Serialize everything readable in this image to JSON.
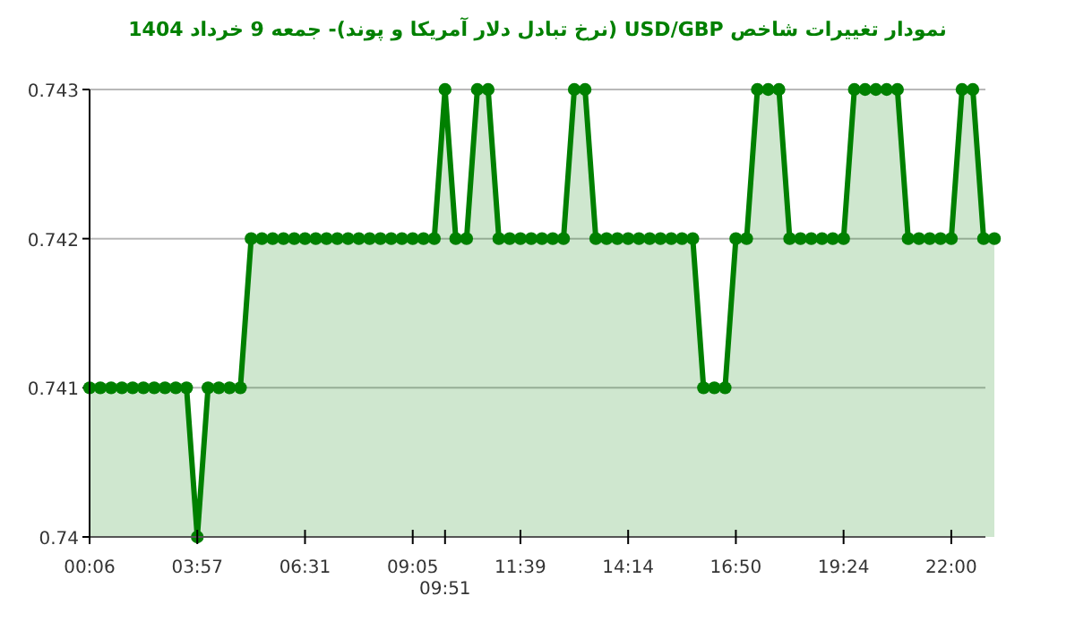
{
  "chart_data": {
    "type": "area",
    "title": "نمودار تغییرات شاخص USD/GBP (نرخ تبادل دلار آمریکا و پوند)- جمعه  9 خرداد 1404",
    "categories": [
      "00:06",
      null,
      null,
      null,
      null,
      null,
      null,
      null,
      null,
      null,
      "03:57",
      null,
      null,
      null,
      null,
      null,
      null,
      null,
      null,
      null,
      "06:31",
      null,
      null,
      null,
      null,
      null,
      null,
      null,
      null,
      null,
      "09:05",
      null,
      null,
      "09:51",
      null,
      null,
      null,
      null,
      null,
      null,
      "11:39",
      null,
      null,
      null,
      null,
      null,
      null,
      null,
      null,
      null,
      "14:14",
      null,
      null,
      null,
      null,
      null,
      null,
      null,
      null,
      null,
      "16:50",
      null,
      null,
      null,
      null,
      null,
      null,
      null,
      null,
      null,
      "19:24",
      null,
      null,
      null,
      null,
      null,
      null,
      null,
      null,
      null,
      "22:00",
      null,
      null,
      null,
      null
    ],
    "series": [
      {
        "color": "#008000",
        "values": [
          0.741,
          0.741,
          0.741,
          0.741,
          0.741,
          0.741,
          0.741,
          0.741,
          0.741,
          0.741,
          0.74,
          0.741,
          0.741,
          0.741,
          0.741,
          0.742,
          0.742,
          0.742,
          0.742,
          0.742,
          0.742,
          0.742,
          0.742,
          0.742,
          0.742,
          0.742,
          0.742,
          0.742,
          0.742,
          0.742,
          0.742,
          0.742,
          0.742,
          0.743,
          0.742,
          0.742,
          0.743,
          0.743,
          0.742,
          0.742,
          0.742,
          0.742,
          0.742,
          0.742,
          0.742,
          0.743,
          0.743,
          0.742,
          0.742,
          0.742,
          0.742,
          0.742,
          0.742,
          0.742,
          0.742,
          0.742,
          0.742,
          0.741,
          0.741,
          0.741,
          0.742,
          0.742,
          0.743,
          0.743,
          0.743,
          0.742,
          0.742,
          0.742,
          0.742,
          0.742,
          0.742,
          0.743,
          0.743,
          0.743,
          0.743,
          0.743,
          0.742,
          0.742,
          0.742,
          0.742,
          0.742,
          0.743,
          0.743,
          0.742,
          0.742
        ]
      }
    ],
    "ylim": [
      0.74,
      0.743
    ],
    "yticks": [
      0.74,
      0.741,
      0.742,
      0.743
    ],
    "grid": "y",
    "marker": "circle",
    "line_style": "solid"
  }
}
